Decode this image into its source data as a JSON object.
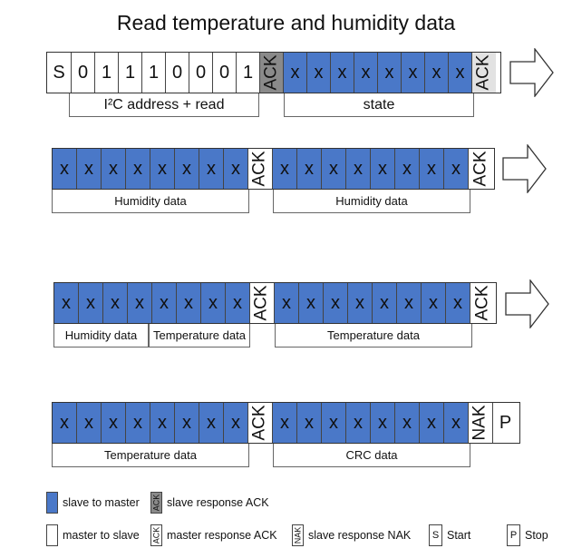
{
  "title": "Read temperature and humidity data",
  "row1": {
    "cells": [
      "S",
      "0",
      "1",
      "1",
      "1",
      "0",
      "0",
      "0",
      "1",
      "ACK",
      "x",
      "x",
      "x",
      "x",
      "x",
      "x",
      "x",
      "x",
      "ACK"
    ],
    "brackets": [
      "I²C address + read",
      "state"
    ]
  },
  "row2": {
    "cells": [
      "x",
      "x",
      "x",
      "x",
      "x",
      "x",
      "x",
      "x",
      "ACK",
      "x",
      "x",
      "x",
      "x",
      "x",
      "x",
      "x",
      "x",
      "ACK"
    ],
    "brackets": [
      "Humidity data",
      "Humidity data"
    ]
  },
  "row3": {
    "cells": [
      "x",
      "x",
      "x",
      "x",
      "x",
      "x",
      "x",
      "x",
      "ACK",
      "x",
      "x",
      "x",
      "x",
      "x",
      "x",
      "x",
      "x",
      "ACK"
    ],
    "brackets": [
      "Humidity data",
      "Temperature data",
      "Temperature data"
    ]
  },
  "row4": {
    "cells": [
      "x",
      "x",
      "x",
      "x",
      "x",
      "x",
      "x",
      "x",
      "ACK",
      "x",
      "x",
      "x",
      "x",
      "x",
      "x",
      "x",
      "x",
      "NAK",
      "P"
    ],
    "brackets": [
      "Temperature data",
      "CRC data"
    ]
  },
  "legend": {
    "slave_to_master": "slave to master",
    "slave_ack_box": "ACK",
    "slave_response_ack": "slave response ACK",
    "master_to_slave": "master to slave",
    "master_ack_box": "ACK",
    "master_response_ack": "master response ACK",
    "nak_box": "NAK",
    "slave_response_nak": "slave response NAK",
    "start_box": "S",
    "start": "Start",
    "stop_box": "P",
    "stop": "Stop"
  },
  "colors": {
    "slave_to_master": "#4a78c8",
    "slave_response_ack": "#8a8a8a",
    "master_to_slave": "#ffffff"
  }
}
